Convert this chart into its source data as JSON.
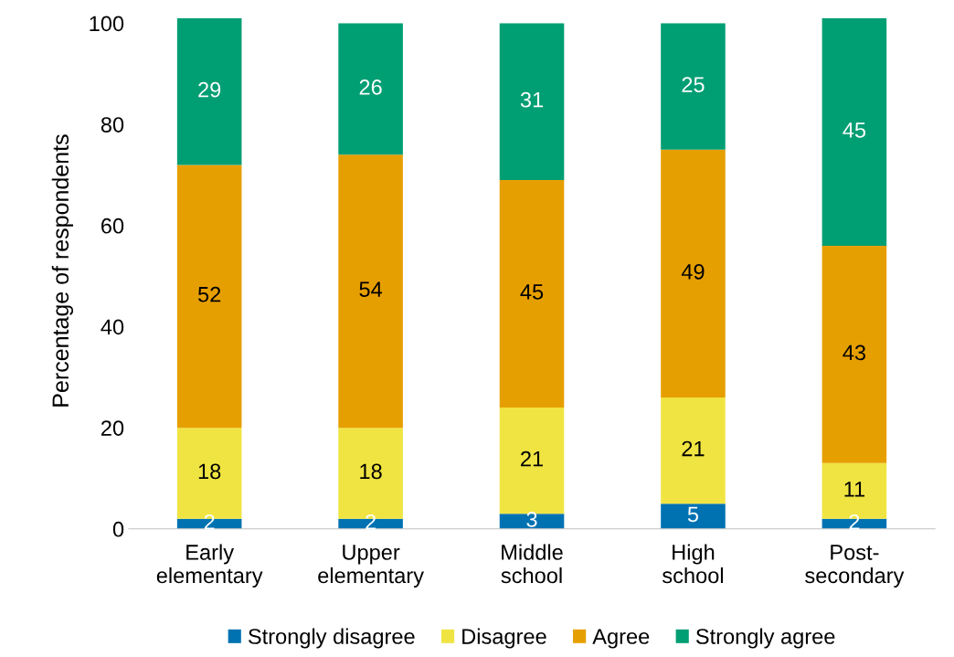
{
  "chart_data": {
    "type": "bar",
    "stacked": true,
    "ylabel": "Percentage of respondents",
    "categories": [
      "Early\nelementary",
      "Upper\nelementary",
      "Middle\nschool",
      "High\nschool",
      "Post-\nsecondary"
    ],
    "series": [
      {
        "name": "Strongly disagree",
        "color": "#0072b2",
        "values": [
          2,
          2,
          3,
          5,
          2
        ]
      },
      {
        "name": "Disagree",
        "color": "#f0e442",
        "values": [
          18,
          18,
          21,
          21,
          11
        ]
      },
      {
        "name": "Agree",
        "color": "#e69f00",
        "values": [
          52,
          54,
          45,
          49,
          43
        ]
      },
      {
        "name": "Strongly agree",
        "color": "#009e73",
        "values": [
          29,
          26,
          31,
          25,
          45
        ]
      }
    ],
    "ylim": [
      0,
      102
    ],
    "yticks": [
      0,
      20,
      40,
      60,
      80,
      100
    ],
    "data_labels": true,
    "legend": "bottom",
    "grid": false
  }
}
